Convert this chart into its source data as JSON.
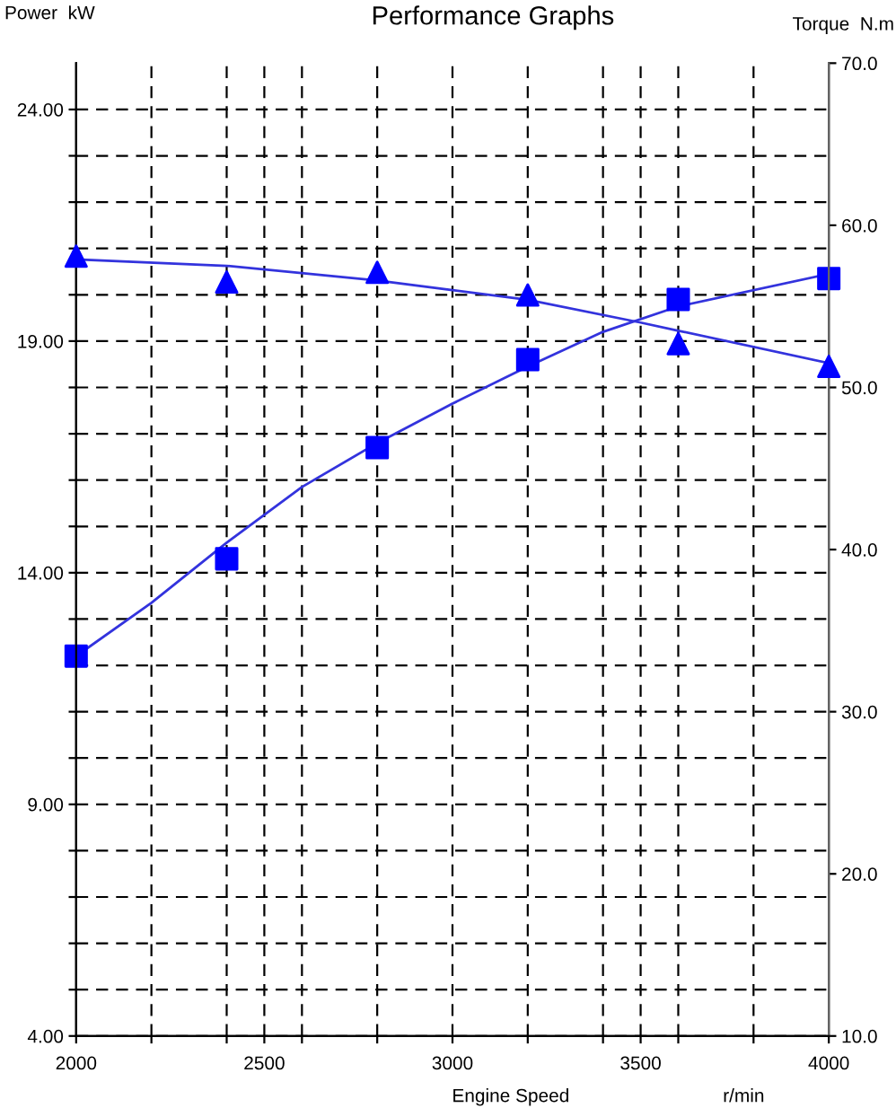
{
  "chart_data": {
    "type": "scatter",
    "title": "Performance Graphs",
    "ylabel": "Power  kW",
    "y2label": "Torque  N.m",
    "xlabel": "Engine Speed",
    "annotations": [
      "r/min"
    ],
    "x": [
      2000,
      2400,
      2800,
      3200,
      3600,
      4000
    ],
    "series": [
      {
        "color": "#0000ff",
        "marker": "square",
        "values": [
          12.2,
          14.3,
          16.7,
          18.6,
          19.9,
          20.35
        ]
      },
      {
        "color": "#0000ff",
        "marker": "triangle",
        "axis": "y2",
        "values": [
          58.1,
          56.5,
          57.1,
          55.7,
          52.7,
          51.3
        ]
      },
      {
        "type": "line",
        "color": "#3333dd",
        "marker": "none",
        "x": [
          2000,
          2200,
          2400,
          2600,
          2800,
          3000,
          3200,
          3400,
          3600,
          4000
        ],
        "values": [
          12.2,
          13.35,
          14.65,
          15.85,
          16.8,
          17.65,
          18.45,
          19.2,
          19.75,
          20.45
        ]
      },
      {
        "type": "line",
        "color": "#3333dd",
        "marker": "none",
        "axis": "y2",
        "x": [
          2000,
          2400,
          2800,
          3000,
          3200,
          3500,
          3600,
          4000
        ],
        "values": [
          57.9,
          57.5,
          56.6,
          56.0,
          55.4,
          54.0,
          53.5,
          51.5
        ]
      }
    ],
    "xlim": [
      2000,
      4000
    ],
    "xticks": [
      2000,
      {
        "value": 2200,
        "label": null
      },
      {
        "value": 2400,
        "label": null
      },
      2500,
      {
        "value": 2600,
        "label": null
      },
      {
        "value": 2800,
        "label": null
      },
      3000,
      {
        "value": 3200,
        "label": null
      },
      {
        "value": 3400,
        "label": null
      },
      3500,
      {
        "value": 3600,
        "label": null
      },
      {
        "value": 3800,
        "label": null
      },
      4000
    ],
    "ylim": [
      4,
      25
    ],
    "yticks": [
      {
        "value": 4,
        "label": "4.00"
      },
      {
        "value": 5,
        "label": null
      },
      {
        "value": 6,
        "label": null
      },
      {
        "value": 7,
        "label": null
      },
      {
        "value": 8,
        "label": null
      },
      {
        "value": 9,
        "label": "9.00"
      },
      {
        "value": 10,
        "label": null
      },
      {
        "value": 11,
        "label": null
      },
      {
        "value": 12,
        "label": null
      },
      {
        "value": 13,
        "label": null
      },
      {
        "value": 14,
        "label": "14.00"
      },
      {
        "value": 15,
        "label": null
      },
      {
        "value": 16,
        "label": null
      },
      {
        "value": 17,
        "label": null
      },
      {
        "value": 18,
        "label": null
      },
      {
        "value": 19,
        "label": "19.00"
      },
      {
        "value": 20,
        "label": null
      },
      {
        "value": 21,
        "label": null
      },
      {
        "value": 22,
        "label": null
      },
      {
        "value": 23,
        "label": null
      },
      {
        "value": 24,
        "label": "24.00"
      }
    ],
    "y2lim": [
      10,
      70
    ],
    "y2ticks": [
      {
        "value": 10,
        "label": "10.0"
      },
      {
        "value": 20,
        "label": "20.0"
      },
      {
        "value": 30,
        "label": "30.0"
      },
      {
        "value": 40,
        "label": "40.0"
      },
      {
        "value": 50,
        "label": "50.0"
      },
      {
        "value": 60,
        "label": "60.0"
      },
      {
        "value": 70,
        "label": "70.0"
      }
    ],
    "grid": true,
    "line_style": "solid"
  }
}
